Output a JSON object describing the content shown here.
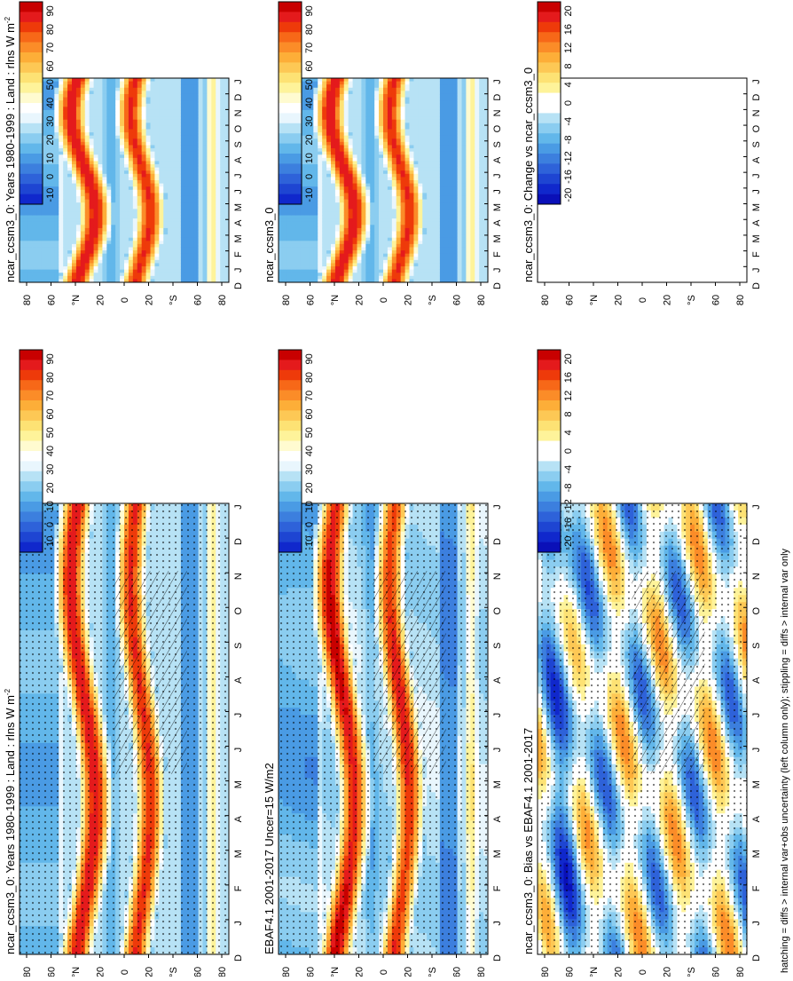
{
  "footer": "hatching = diffs > internal var+obs uncertainty (left column only); stippling = diffs > internal var only",
  "axes": {
    "months": [
      "J",
      "F",
      "M",
      "A",
      "M",
      "J",
      "J",
      "A",
      "S",
      "O",
      "N",
      "D",
      "J"
    ],
    "month_first": "D",
    "lat_ticks": [
      "80",
      "60",
      "°N",
      "20",
      "0",
      "20",
      "°S",
      "60",
      "80"
    ]
  },
  "chart_data": [
    {
      "type": "heatmap",
      "title": "ncar_ccsm3_0: Years 1980-1999 : Land : rlns W m",
      "title_sup": "-2",
      "kind": "abs",
      "stipple": true,
      "colorbar": "abs",
      "panel": "left-top"
    },
    {
      "type": "heatmap",
      "title": "EBAF4.1 2001-2017 Uncer=15 W/m2",
      "title_sup": "",
      "kind": "obs",
      "stipple": true,
      "colorbar": "abs",
      "panel": "left-mid"
    },
    {
      "type": "heatmap",
      "title": "ncar_ccsm3_0: Bias vs EBAF4.1 2001-2017",
      "title_sup": "",
      "kind": "bias",
      "stipple": true,
      "colorbar": "diff",
      "panel": "left-bot"
    },
    {
      "type": "heatmap",
      "title": "ncar_ccsm3_0: Years 1980-1999 : Land : rlns W m",
      "title_sup": "-2",
      "kind": "abs",
      "stipple": false,
      "colorbar": "abs",
      "panel": "right-top"
    },
    {
      "type": "heatmap",
      "title": "ncar_ccsm3_0",
      "title_sup": "",
      "kind": "abs",
      "stipple": false,
      "colorbar": "abs",
      "panel": "right-mid"
    },
    {
      "type": "heatmap",
      "title": "ncar_ccsm3_0: Change vs ncar_ccsm3_0",
      "title_sup": "",
      "kind": "empty",
      "stipple": false,
      "colorbar": "diff",
      "panel": "right-bot"
    }
  ],
  "colorbars": {
    "abs": {
      "labels": [
        "90",
        "80",
        "70",
        "60",
        "50",
        "40",
        "30",
        "20",
        "10",
        "0",
        "-10"
      ],
      "colors": [
        "#c80000",
        "#e41a1c",
        "#ee3a0a",
        "#f76818",
        "#fb8c28",
        "#fdae38",
        "#fdc855",
        "#fde274",
        "#fef39a",
        "#fffbd0",
        "#ffffff",
        "#e9f6fd",
        "#b7e2f5",
        "#8bcdf0",
        "#62b7ea",
        "#4a9be4",
        "#3c7fde",
        "#2e62d9",
        "#1e45d2",
        "#1028cc"
      ]
    },
    "diff": {
      "labels": [
        "20",
        "16",
        "12",
        "8",
        "4",
        "0",
        "-4",
        "-8",
        "-12",
        "-16",
        "-20"
      ],
      "colors": [
        "#c80000",
        "#e41a1c",
        "#ee3a0a",
        "#f76818",
        "#fb8c28",
        "#fdae38",
        "#fdc855",
        "#fde274",
        "#fef39a",
        "#ffffff",
        "#ffffff",
        "#b7e2f5",
        "#8bcdf0",
        "#62b7ea",
        "#4a9be4",
        "#3c7fde",
        "#2e62d9",
        "#1e45d2",
        "#1028cc",
        "#0a10b8"
      ]
    }
  }
}
